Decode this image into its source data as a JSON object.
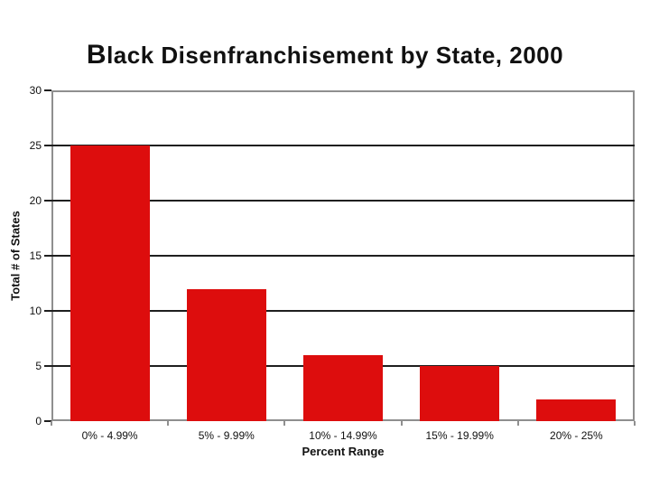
{
  "chart_data": {
    "type": "bar",
    "title": "Black Disenfranchisement by State, 2000",
    "categories": [
      "0% - 4.99%",
      "5% - 9.99%",
      "10% - 14.99%",
      "15% - 19.99%",
      "20% - 25%"
    ],
    "values": [
      25,
      12,
      6,
      5,
      2
    ],
    "xlabel": "Percent Range",
    "ylabel": "Total # of States",
    "ylim": [
      0,
      30
    ],
    "yticks": [
      0,
      5,
      10,
      15,
      20,
      25,
      30
    ],
    "grid": true,
    "legend": false,
    "colors": {
      "bar": "#dd0d0d",
      "gridline": "#1f1f1f",
      "axis": "#8f8f8f",
      "text": "#111111",
      "background": "#ffffff"
    }
  }
}
